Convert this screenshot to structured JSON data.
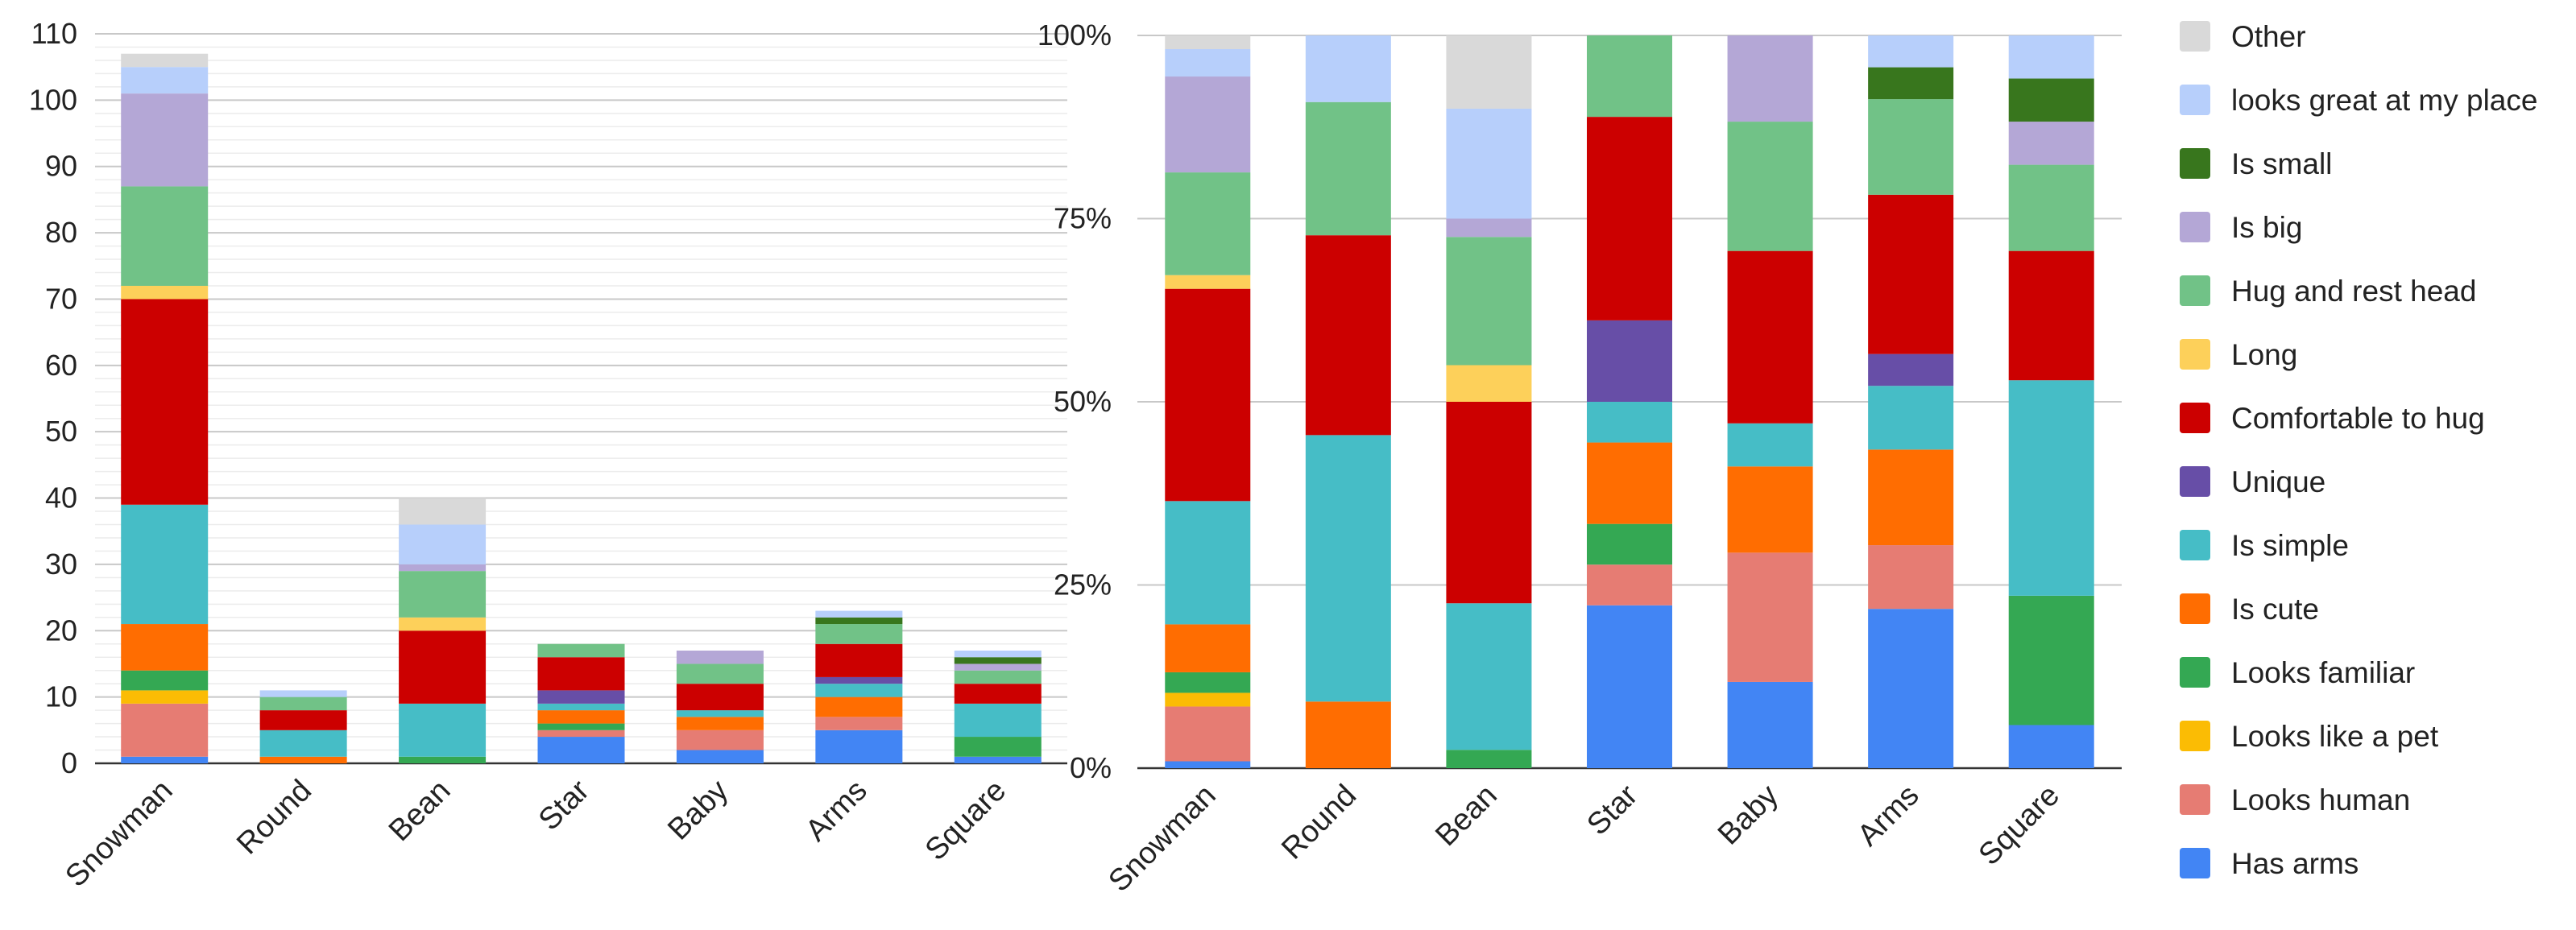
{
  "chart_data": [
    {
      "type": "bar",
      "stacked": true,
      "categories": [
        "Snowman",
        "Round",
        "Bean",
        "Star",
        "Baby",
        "Arms",
        "Square"
      ],
      "ylim": [
        0,
        110
      ],
      "yticks": [
        "0",
        "10",
        "20",
        "30",
        "40",
        "50",
        "60",
        "70",
        "80",
        "90",
        "100",
        "110"
      ],
      "grid": true,
      "series": [
        {
          "name": "Has arms",
          "color": "#4285f4",
          "values": [
            1,
            0,
            0,
            4,
            2,
            5,
            1
          ]
        },
        {
          "name": "Looks human",
          "color": "#e67c73",
          "values": [
            8,
            0,
            0,
            1,
            3,
            2,
            0
          ]
        },
        {
          "name": "Looks like a pet",
          "color": "#fbbc04",
          "values": [
            2,
            0,
            0,
            0,
            0,
            0,
            0
          ]
        },
        {
          "name": "Looks familiar",
          "color": "#34a853",
          "values": [
            3,
            0,
            1,
            1,
            0,
            0,
            3
          ]
        },
        {
          "name": "Is cute",
          "color": "#ff6d01",
          "values": [
            7,
            1,
            0,
            2,
            2,
            3,
            0
          ]
        },
        {
          "name": "Is simple",
          "color": "#46bdc6",
          "values": [
            18,
            4,
            8,
            1,
            1,
            2,
            5
          ]
        },
        {
          "name": "Unique",
          "color": "#674ea7",
          "values": [
            0,
            0,
            0,
            2,
            0,
            1,
            0
          ]
        },
        {
          "name": "Comfortable to hug",
          "color": "#cc0000",
          "values": [
            31,
            3,
            11,
            5,
            4,
            5,
            3
          ]
        },
        {
          "name": "Long",
          "color": "#fdd05a",
          "values": [
            2,
            0,
            2,
            0,
            0,
            0,
            0
          ]
        },
        {
          "name": "Hug and rest head",
          "color": "#71c287",
          "values": [
            15,
            2,
            7,
            2,
            3,
            3,
            2
          ]
        },
        {
          "name": "Is big",
          "color": "#b4a7d6",
          "values": [
            14,
            0,
            1,
            0,
            2,
            0,
            1
          ]
        },
        {
          "name": "Is small",
          "color": "#38761d",
          "values": [
            0,
            0,
            0,
            0,
            0,
            1,
            1
          ]
        },
        {
          "name": "looks great at my place",
          "color": "#b7cffb",
          "values": [
            4,
            1,
            6,
            0,
            0,
            1,
            1
          ]
        },
        {
          "name": "Other",
          "color": "#d9d9d9",
          "values": [
            2,
            0,
            4,
            0,
            0,
            0,
            0
          ]
        }
      ]
    },
    {
      "type": "bar",
      "stacked": true,
      "normalized": true,
      "categories": [
        "Snowman",
        "Round",
        "Bean",
        "Star",
        "Baby",
        "Arms",
        "Square"
      ],
      "ylim": [
        0,
        100
      ],
      "yticks": [
        "0%",
        "25%",
        "50%",
        "75%",
        "100%"
      ],
      "grid": true,
      "legend_position": "right",
      "legend_order": [
        "Other",
        "looks great at my place",
        "Is small",
        "Is big",
        "Hug and rest head",
        "Long",
        "Comfortable to hug",
        "Unique",
        "Is simple",
        "Is cute",
        "Looks familiar",
        "Looks like a pet",
        "Looks human",
        "Has arms"
      ],
      "series_ref": "same as chart 1, values shown as percent of each category total"
    }
  ]
}
